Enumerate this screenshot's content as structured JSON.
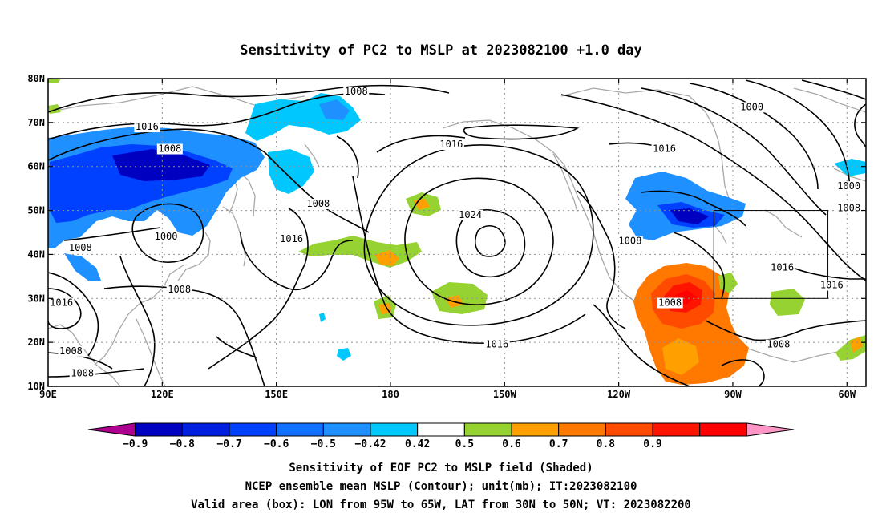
{
  "title": "Sensitivity of PC2 to MSLP at 2023082100 +1.0 day",
  "map": {
    "lon_range": [
      90,
      305
    ],
    "lat_range": [
      10,
      80
    ],
    "lat_ticks": [
      {
        "lat": 80,
        "label": "80N"
      },
      {
        "lat": 70,
        "label": "70N"
      },
      {
        "lat": 60,
        "label": "60N"
      },
      {
        "lat": 50,
        "label": "50N"
      },
      {
        "lat": 40,
        "label": "40N"
      },
      {
        "lat": 30,
        "label": "30N"
      },
      {
        "lat": 20,
        "label": "20N"
      },
      {
        "lat": 10,
        "label": "10N"
      }
    ],
    "lon_ticks": [
      {
        "lon": 90,
        "label": "90E"
      },
      {
        "lon": 120,
        "label": "120E"
      },
      {
        "lon": 150,
        "label": "150E"
      },
      {
        "lon": 180,
        "label": "180"
      },
      {
        "lon": 210,
        "label": "150W"
      },
      {
        "lon": 240,
        "label": "120W"
      },
      {
        "lon": 270,
        "label": "90W"
      },
      {
        "lon": 300,
        "label": "60W"
      }
    ],
    "grid": true,
    "valid_box": {
      "lon": [
        265,
        295
      ],
      "lat": [
        30,
        50
      ]
    },
    "contour_labels": [
      {
        "text": "1008",
        "lon": 171,
        "lat": 76.5
      },
      {
        "text": "1016",
        "lon": 116,
        "lat": 68.5
      },
      {
        "text": "1008",
        "lon": 122,
        "lat": 63.5
      },
      {
        "text": "1016",
        "lon": 196,
        "lat": 64.5
      },
      {
        "text": "1016",
        "lon": 252,
        "lat": 63.5
      },
      {
        "text": "1000",
        "lon": 275,
        "lat": 73
      },
      {
        "text": "1024",
        "lon": 201,
        "lat": 48.5
      },
      {
        "text": "1008",
        "lon": 161,
        "lat": 51
      },
      {
        "text": "1016",
        "lon": 154,
        "lat": 43
      },
      {
        "text": "1000",
        "lon": 121,
        "lat": 43.5
      },
      {
        "text": "1008",
        "lon": 98.5,
        "lat": 41
      },
      {
        "text": "1008",
        "lon": 124.5,
        "lat": 31.5
      },
      {
        "text": "1016",
        "lon": 93.5,
        "lat": 28.5
      },
      {
        "text": "1008",
        "lon": 96,
        "lat": 17.5
      },
      {
        "text": "1008",
        "lon": 99,
        "lat": 12.5
      },
      {
        "text": "1008",
        "lon": 243,
        "lat": 42.5
      },
      {
        "text": "1016",
        "lon": 208,
        "lat": 19
      },
      {
        "text": "1008",
        "lon": 253.5,
        "lat": 28.5
      },
      {
        "text": "1016",
        "lon": 283,
        "lat": 36.5
      },
      {
        "text": "1016",
        "lon": 296,
        "lat": 32.5
      },
      {
        "text": "1000",
        "lon": 300.5,
        "lat": 55
      },
      {
        "text": "1008",
        "lon": 300.5,
        "lat": 50
      },
      {
        "text": "1008",
        "lon": 282,
        "lat": 19
      }
    ]
  },
  "colorbar": {
    "colors": [
      "#b00090",
      "#0000c0",
      "#0020e0",
      "#0040ff",
      "#1070ff",
      "#1e90ff",
      "#00c8ff",
      "#ffffff",
      "#96d232",
      "#ffa000",
      "#ff7800",
      "#ff4b00",
      "#ff1400",
      "#ff0000",
      "#ff96c8"
    ],
    "labels": [
      "-0.9",
      "-0.8",
      "-0.7",
      "-0.6",
      "-0.5",
      "-0.42",
      "0.42",
      "0.5",
      "0.6",
      "0.7",
      "0.8",
      "0.9"
    ]
  },
  "captions": {
    "line1": "Sensitivity of EOF PC2 to MSLP field (Shaded)",
    "line2": "NCEP ensemble mean MSLP (Contour); unit(mb); IT:2023082100",
    "line3": "Valid area (box): LON from 95W to 65W, LAT from 30N to 50N; VT: 2023082200"
  }
}
